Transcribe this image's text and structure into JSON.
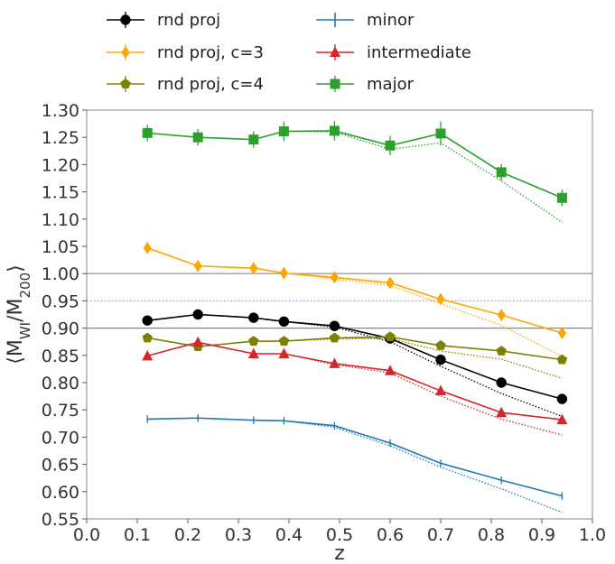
{
  "chart_data": {
    "type": "line",
    "xlabel": "z",
    "ylabel": "⟨M_WI/M_200⟩",
    "xlim": [
      0.0,
      1.0
    ],
    "ylim": [
      0.55,
      1.3
    ],
    "x_ticks": [
      "0.0",
      "0.1",
      "0.2",
      "0.3",
      "0.4",
      "0.5",
      "0.6",
      "0.7",
      "0.8",
      "0.9",
      "1.0"
    ],
    "y_ticks": [
      "0.55",
      "0.60",
      "0.65",
      "0.70",
      "0.75",
      "0.80",
      "0.85",
      "0.90",
      "0.95",
      "1.00",
      "1.05",
      "1.10",
      "1.15",
      "1.20",
      "1.25",
      "1.30"
    ],
    "grid": false,
    "legend_position": "top",
    "reference_lines": [
      {
        "y": 1.0,
        "style": "solid"
      },
      {
        "y": 0.95,
        "style": "dotted"
      },
      {
        "y": 0.9,
        "style": "solid"
      }
    ],
    "x": [
      0.12,
      0.22,
      0.33,
      0.39,
      0.49,
      0.6,
      0.7,
      0.82,
      0.94
    ],
    "series": [
      {
        "name": "rnd proj",
        "color": "#000000",
        "marker": "circle",
        "values": [
          0.914,
          0.925,
          0.919,
          0.912,
          0.904,
          0.881,
          0.842,
          0.8,
          0.77
        ],
        "dotted_values": [
          0.914,
          0.925,
          0.919,
          0.912,
          0.902,
          0.875,
          0.83,
          0.78,
          0.738
        ],
        "errors": [
          0.006,
          0.006,
          0.006,
          0.006,
          0.006,
          0.007,
          0.007,
          0.007,
          0.008
        ]
      },
      {
        "name": "rnd proj, c=3",
        "color": "#ffa500",
        "marker": "diamond",
        "values": [
          1.047,
          1.014,
          1.01,
          1.001,
          0.993,
          0.983,
          0.953,
          0.924,
          0.891
        ],
        "dotted_values": [
          1.047,
          1.014,
          1.01,
          1.001,
          0.99,
          0.978,
          0.945,
          0.905,
          0.848
        ],
        "errors": [
          0.008,
          0.008,
          0.008,
          0.008,
          0.008,
          0.009,
          0.009,
          0.009,
          0.01
        ]
      },
      {
        "name": "rnd proj, c=4",
        "color": "#808000",
        "marker": "pentagon",
        "values": [
          0.882,
          0.866,
          0.876,
          0.876,
          0.882,
          0.884,
          0.868,
          0.858,
          0.842
        ],
        "dotted_values": [
          0.882,
          0.866,
          0.876,
          0.876,
          0.88,
          0.881,
          0.858,
          0.843,
          0.808
        ],
        "errors": [
          0.005,
          0.005,
          0.005,
          0.005,
          0.005,
          0.005,
          0.006,
          0.006,
          0.006
        ]
      },
      {
        "name": "minor",
        "color": "#1f77b4",
        "marker": "vline",
        "values": [
          0.733,
          0.735,
          0.731,
          0.73,
          0.721,
          0.689,
          0.652,
          0.621,
          0.592
        ],
        "dotted_values": [
          0.733,
          0.735,
          0.731,
          0.73,
          0.718,
          0.684,
          0.645,
          0.605,
          0.562
        ],
        "errors": [
          0.007,
          0.007,
          0.007,
          0.007,
          0.007,
          0.007,
          0.007,
          0.007,
          0.007
        ]
      },
      {
        "name": "intermediate",
        "color": "#d62728",
        "marker": "triangle",
        "values": [
          0.849,
          0.874,
          0.853,
          0.853,
          0.835,
          0.822,
          0.785,
          0.745,
          0.732
        ],
        "dotted_values": [
          0.849,
          0.874,
          0.853,
          0.853,
          0.833,
          0.818,
          0.775,
          0.733,
          0.704
        ],
        "errors": [
          0.006,
          0.009,
          0.008,
          0.008,
          0.007,
          0.007,
          0.008,
          0.009,
          0.009
        ]
      },
      {
        "name": "major",
        "color": "#2ca02c",
        "marker": "square",
        "values": [
          1.258,
          1.25,
          1.246,
          1.261,
          1.262,
          1.235,
          1.257,
          1.186,
          1.139
        ],
        "dotted_values": [
          1.258,
          1.25,
          1.246,
          1.261,
          1.26,
          1.228,
          1.24,
          1.17,
          1.094
        ],
        "errors": [
          0.015,
          0.015,
          0.015,
          0.018,
          0.018,
          0.018,
          0.022,
          0.015,
          0.015
        ]
      }
    ]
  }
}
